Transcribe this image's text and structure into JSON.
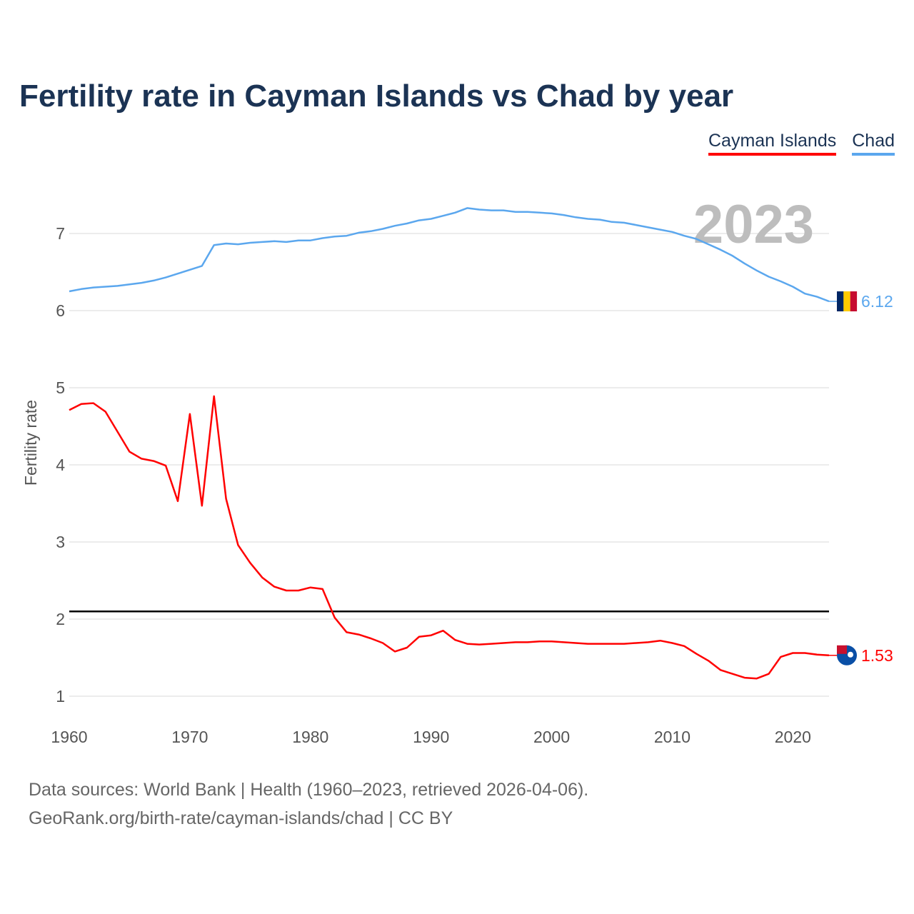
{
  "chart_data": {
    "type": "line",
    "title": "Fertility rate in Cayman Islands vs Chad by year",
    "xlabel": "",
    "ylabel": "Fertility rate",
    "xlim": [
      1960,
      2023
    ],
    "ylim": [
      0.8,
      7.6
    ],
    "xticks": [
      1960,
      1970,
      1980,
      1990,
      2000,
      2010,
      2020
    ],
    "yticks": [
      1,
      2,
      3,
      4,
      5,
      6,
      7
    ],
    "grid": true,
    "legend_position": "top-right",
    "year_label": "2023",
    "reference_line": 2.1,
    "x": [
      1960,
      1961,
      1962,
      1963,
      1964,
      1965,
      1966,
      1967,
      1968,
      1969,
      1970,
      1971,
      1972,
      1973,
      1974,
      1975,
      1976,
      1977,
      1978,
      1979,
      1980,
      1981,
      1982,
      1983,
      1984,
      1985,
      1986,
      1987,
      1988,
      1989,
      1990,
      1991,
      1992,
      1993,
      1994,
      1995,
      1996,
      1997,
      1998,
      1999,
      2000,
      2001,
      2002,
      2003,
      2004,
      2005,
      2006,
      2007,
      2008,
      2009,
      2010,
      2011,
      2012,
      2013,
      2014,
      2015,
      2016,
      2017,
      2018,
      2019,
      2020,
      2021,
      2022,
      2023
    ],
    "series": [
      {
        "name": "Cayman Islands",
        "color": "#ff0000",
        "end_label": "1.53",
        "values": [
          4.71,
          4.79,
          4.8,
          4.69,
          4.43,
          4.17,
          4.08,
          4.05,
          3.99,
          3.53,
          4.66,
          3.47,
          4.89,
          3.56,
          2.96,
          2.73,
          2.54,
          2.42,
          2.37,
          2.37,
          2.41,
          2.39,
          2.02,
          1.83,
          1.8,
          1.75,
          1.69,
          1.58,
          1.63,
          1.77,
          1.79,
          1.85,
          1.73,
          1.68,
          1.67,
          1.68,
          1.69,
          1.7,
          1.7,
          1.71,
          1.71,
          1.7,
          1.69,
          1.68,
          1.68,
          1.68,
          1.68,
          1.69,
          1.7,
          1.72,
          1.69,
          1.65,
          1.55,
          1.46,
          1.34,
          1.29,
          1.24,
          1.23,
          1.29,
          1.51,
          1.56,
          1.56,
          1.54,
          1.53
        ]
      },
      {
        "name": "Chad",
        "color": "#5ba7ee",
        "end_label": "6.12",
        "values": [
          6.25,
          6.28,
          6.3,
          6.31,
          6.32,
          6.34,
          6.36,
          6.39,
          6.43,
          6.48,
          6.53,
          6.58,
          6.85,
          6.87,
          6.86,
          6.88,
          6.89,
          6.9,
          6.89,
          6.91,
          6.91,
          6.94,
          6.96,
          6.97,
          7.01,
          7.03,
          7.06,
          7.1,
          7.13,
          7.17,
          7.19,
          7.23,
          7.27,
          7.33,
          7.31,
          7.3,
          7.3,
          7.28,
          7.28,
          7.27,
          7.26,
          7.24,
          7.21,
          7.19,
          7.18,
          7.15,
          7.14,
          7.11,
          7.08,
          7.05,
          7.02,
          6.97,
          6.93,
          6.86,
          6.79,
          6.71,
          6.61,
          6.52,
          6.44,
          6.38,
          6.31,
          6.22,
          6.18,
          6.12
        ]
      }
    ]
  },
  "footer": {
    "line1": "Data sources: World Bank | Health (1960–2023, retrieved 2026-04-06).",
    "line2": "GeoRank.org/birth-rate/cayman-islands/chad | CC BY"
  }
}
